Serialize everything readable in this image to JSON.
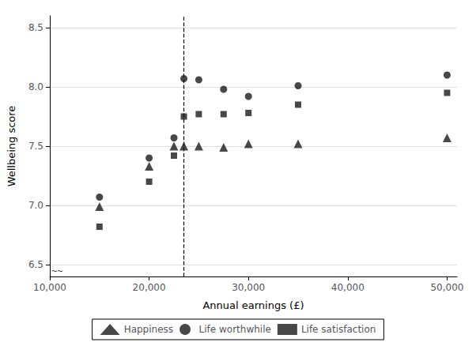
{
  "chart_data": {
    "type": "scatter",
    "xlabel": "Annual earnings (£)",
    "ylabel": "Wellbeing score",
    "series": [
      {
        "name": "Happiness",
        "color": "#1a1a1a",
        "marker": "triangle",
        "x": [
          15000,
          20000,
          22500,
          23500,
          25000,
          27500,
          30000,
          35000,
          50000
        ],
        "values": [
          6.99,
          7.33,
          7.5,
          7.5,
          7.5,
          7.49,
          7.52,
          7.52,
          7.57
        ]
      },
      {
        "name": "Life worthwhile",
        "color": "#1a1a1a",
        "marker": "circle",
        "x": [
          15000,
          20000,
          22500,
          23500,
          25000,
          27500,
          30000,
          35000,
          50000
        ],
        "values": [
          7.07,
          7.4,
          7.57,
          8.07,
          8.06,
          7.98,
          7.92,
          8.01,
          8.1
        ]
      },
      {
        "name": "Life satisfaction",
        "color": "#1a1a1a",
        "marker": "square",
        "x": [
          15000,
          20000,
          22500,
          23500,
          25000,
          27500,
          30000,
          35000,
          50000
        ],
        "values": [
          6.82,
          7.2,
          7.42,
          7.75,
          7.77,
          7.77,
          7.78,
          7.85,
          7.95
        ]
      }
    ],
    "reference_lines": [
      {
        "x": 23500,
        "line_style": "dashed",
        "color": "#000000"
      }
    ],
    "annotations": [
      {
        "text": "~~",
        "x": 10000,
        "y": 6.45
      }
    ],
    "xlim": [
      10000,
      51000
    ],
    "xticks": [
      {
        "value": 10000,
        "label": "10,000"
      },
      {
        "value": 20000,
        "label": "20,000"
      },
      {
        "value": 30000,
        "label": "30,000"
      },
      {
        "value": 40000,
        "label": "40,000"
      },
      {
        "value": 50000,
        "label": "50,000"
      }
    ],
    "ylim": [
      6.4,
      8.6
    ],
    "yticks": [
      6.5,
      {
        "value": 7.0,
        "label": "7.0"
      },
      7.5,
      {
        "value": 8.0,
        "label": "8.0"
      },
      8.5
    ],
    "grid": "y",
    "legend": "bottom"
  }
}
